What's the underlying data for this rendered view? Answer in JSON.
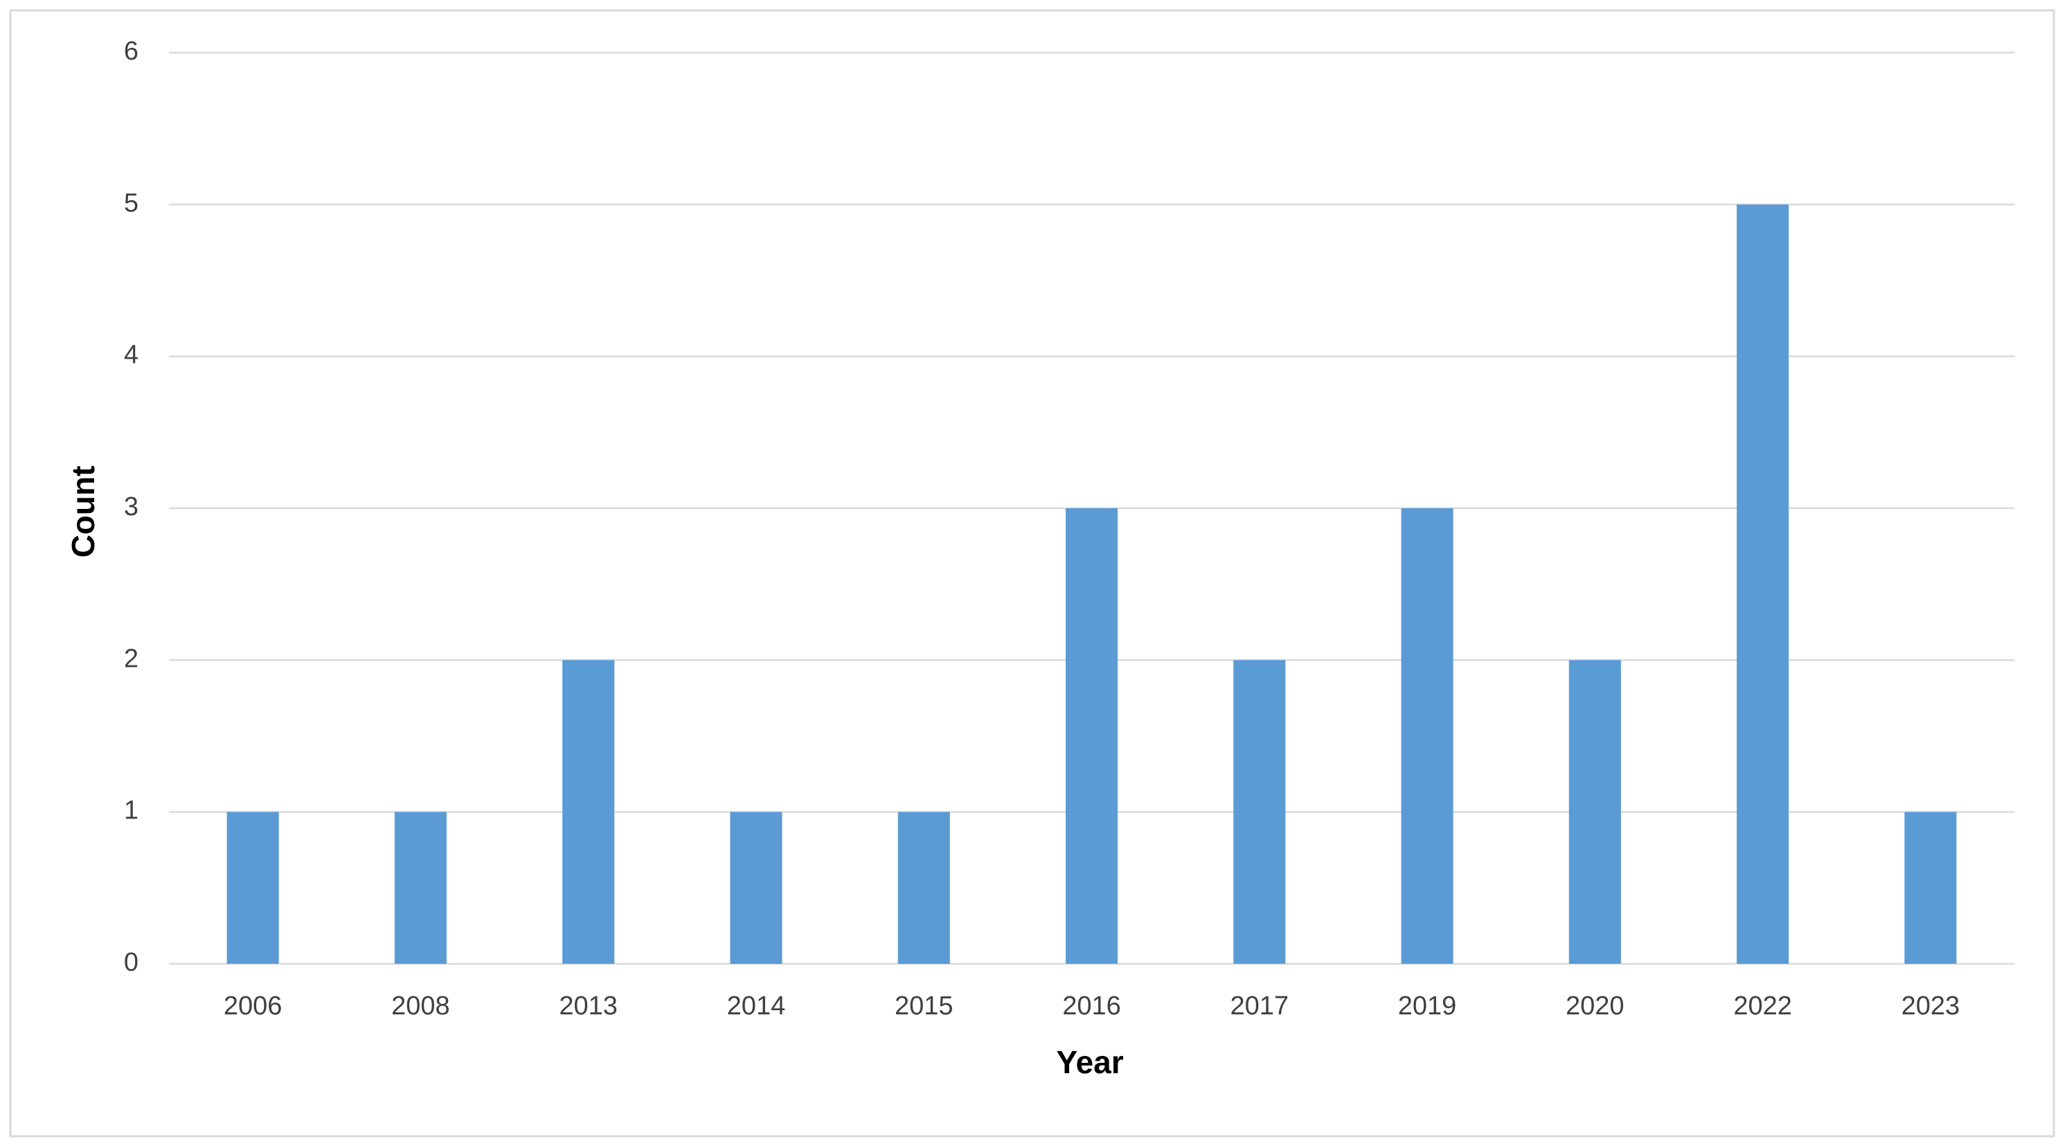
{
  "chart_data": {
    "type": "bar",
    "x_label": "Year",
    "y_label": "Count",
    "categories": [
      "2006",
      "2008",
      "2013",
      "2014",
      "2015",
      "2016",
      "2017",
      "2019",
      "2020",
      "2022",
      "2023"
    ],
    "values": [
      1,
      1,
      2,
      1,
      1,
      3,
      2,
      3,
      2,
      5,
      1
    ],
    "color": "#5b9bd5",
    "ylim": [
      0,
      6
    ],
    "yticks": [
      0,
      1,
      2,
      3,
      4,
      5,
      6
    ],
    "grid": true
  }
}
